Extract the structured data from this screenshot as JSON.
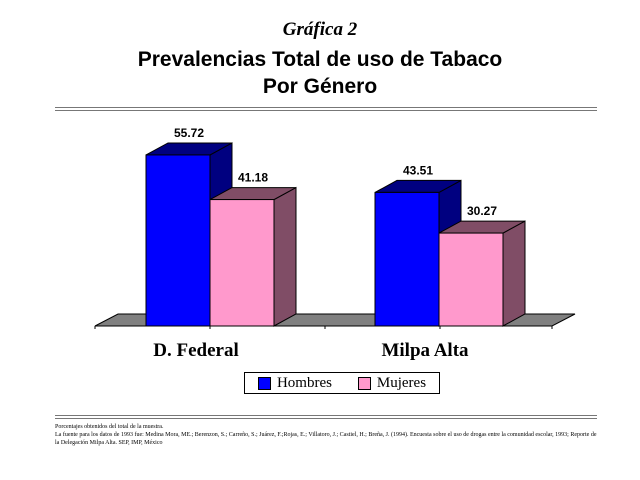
{
  "kicker": "Gráfica 2",
  "title_line1": "Prevalencias Total de uso de Tabaco",
  "title_line2": "Por Género",
  "colors": {
    "hombres": "#0000ff",
    "hombres_side": "#000080",
    "mujeres": "#ff99cc",
    "mujeres_side": "#804d66",
    "floor": "#808080"
  },
  "chart_data": {
    "type": "bar",
    "categories": [
      "D. Federal",
      "Milpa Alta"
    ],
    "series": [
      {
        "name": "Hombres",
        "values": [
          55.72,
          43.51
        ]
      },
      {
        "name": "Mujeres",
        "values": [
          41.18,
          30.27
        ]
      }
    ],
    "data_labels": [
      [
        "55.72",
        "43.51"
      ],
      [
        "41.18",
        "30.27"
      ]
    ],
    "legend_position": "bottom",
    "grid": false,
    "three_d": true
  },
  "footnotes": {
    "line1": "Porcentajes obtenidos del total de la muestra.",
    "line2": "La fuente para los datos de 1993 fue: Medina Mora, ME.; Berenzon, S.; Carreño, S.; Juárez, F.;Rojas, E.; Villatoro, J.; Castiel, H.; Breña, J. (1994). Encuesta sobre el uso de drogas entre la comunidad escolar, 1993; Reporte de la Delegación Milpa Alta. SEP, IMP, México"
  }
}
